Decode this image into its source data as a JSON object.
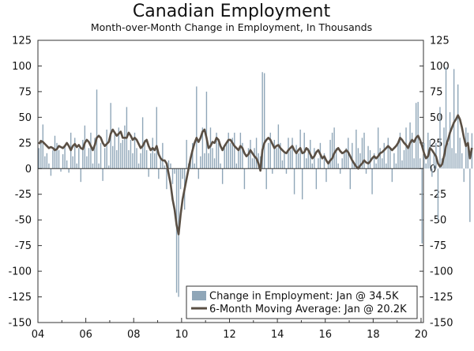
{
  "chart_data": {
    "type": "bar",
    "title": "Canadian Employment",
    "subtitle": "Month-over-Month Change in Employment, In Thousands",
    "xlabel": "",
    "ylabel": "",
    "ylim": [
      -150,
      125
    ],
    "yticks": [
      125,
      100,
      75,
      50,
      25,
      0,
      -25,
      -50,
      -75,
      -100,
      -125,
      -150
    ],
    "xlim": [
      2004.0,
      2020.1
    ],
    "xtick_labels": [
      "04",
      "06",
      "08",
      "10",
      "12",
      "14",
      "16",
      "18",
      "20"
    ],
    "xtick_years": [
      2004,
      2006,
      2008,
      2010,
      2012,
      2014,
      2016,
      2018,
      2020
    ],
    "x_start": "2004-01",
    "frequency": "monthly",
    "series": [
      {
        "name": "Change in Employment: Jan @ 34.5K",
        "type": "bar",
        "color": "#8fa6b8",
        "values": [
          20,
          25,
          43,
          12,
          15,
          5,
          -7,
          18,
          32,
          25,
          18,
          -3,
          14,
          22,
          8,
          -4,
          35,
          12,
          30,
          5,
          20,
          -13,
          28,
          42,
          12,
          20,
          35,
          5,
          30,
          77,
          5,
          25,
          -12,
          20,
          38,
          3,
          64,
          22,
          35,
          18,
          40,
          25,
          28,
          42,
          60,
          18,
          28,
          15,
          35,
          20,
          5,
          15,
          50,
          28,
          18,
          -8,
          15,
          30,
          15,
          60,
          -10,
          10,
          25,
          3,
          -20,
          8,
          5,
          -15,
          -5,
          -121,
          -125,
          -20,
          -10,
          -40,
          28,
          5,
          10,
          25,
          5,
          80,
          -10,
          12,
          40,
          15,
          75,
          15,
          40,
          20,
          10,
          35,
          25,
          5,
          -15,
          20,
          25,
          35,
          25,
          30,
          35,
          5,
          20,
          35,
          25,
          -20,
          0,
          20,
          28,
          10,
          20,
          30,
          15,
          12,
          94,
          93,
          -20,
          25,
          35,
          -5,
          28,
          20,
          43,
          25,
          8,
          15,
          -5,
          30,
          18,
          30,
          -25,
          23,
          15,
          38,
          -30,
          35,
          10,
          20,
          28,
          5,
          20,
          -20,
          10,
          25,
          0,
          15,
          -13,
          5,
          28,
          35,
          40,
          20,
          5,
          -5,
          10,
          15,
          20,
          30,
          -20,
          25,
          5,
          38,
          20,
          15,
          30,
          35,
          -5,
          22,
          18,
          -25,
          15,
          5,
          40,
          20,
          10,
          25,
          5,
          30,
          20,
          -13,
          15,
          5,
          25,
          35,
          8,
          18,
          40,
          20,
          45,
          35,
          10,
          64,
          65,
          10,
          -73,
          25,
          5,
          35,
          28,
          -8,
          15,
          25,
          -50,
          60,
          10,
          40,
          99,
          25,
          55,
          20,
          97,
          15,
          82,
          30,
          15,
          -13,
          40,
          35,
          -52,
          34.5
        ]
      },
      {
        "name": "6-Month Moving Average: Jan @ 20.2K",
        "type": "line",
        "color": "#5a4f44",
        "values": [
          24,
          27,
          26,
          24,
          22,
          20,
          21,
          20,
          18,
          19,
          22,
          21,
          20,
          22,
          25,
          22,
          18,
          22,
          24,
          21,
          23,
          20,
          19,
          25,
          28,
          26,
          22,
          18,
          23,
          30,
          32,
          30,
          25,
          22,
          24,
          26,
          34,
          38,
          35,
          32,
          34,
          36,
          30,
          30,
          30,
          35,
          32,
          28,
          30,
          28,
          24,
          20,
          22,
          26,
          28,
          22,
          18,
          20,
          18,
          22,
          14,
          10,
          8,
          8,
          5,
          -5,
          -15,
          -30,
          -40,
          -55,
          -64,
          -45,
          -30,
          -20,
          -10,
          0,
          10,
          18,
          25,
          30,
          26,
          30,
          36,
          38,
          30,
          20,
          22,
          26,
          25,
          30,
          28,
          22,
          18,
          22,
          25,
          28,
          28,
          25,
          22,
          20,
          18,
          22,
          20,
          15,
          12,
          14,
          18,
          15,
          12,
          10,
          5,
          -2,
          18,
          25,
          28,
          30,
          28,
          24,
          20,
          22,
          23,
          20,
          18,
          16,
          15,
          18,
          20,
          22,
          18,
          15,
          18,
          20,
          15,
          16,
          20,
          18,
          14,
          10,
          12,
          16,
          18,
          14,
          10,
          12,
          8,
          5,
          8,
          10,
          15,
          18,
          20,
          17,
          15,
          16,
          18,
          16,
          12,
          8,
          5,
          2,
          0,
          3,
          5,
          8,
          6,
          5,
          7,
          10,
          12,
          10,
          12,
          15,
          16,
          18,
          20,
          22,
          20,
          18,
          20,
          22,
          25,
          30,
          28,
          25,
          23,
          20,
          25,
          28,
          26,
          30,
          32,
          28,
          22,
          15,
          10,
          12,
          20,
          18,
          15,
          12,
          5,
          2,
          4,
          12,
          22,
          28,
          35,
          40,
          45,
          48,
          52,
          48,
          40,
          30,
          22,
          25,
          10,
          20.2
        ]
      }
    ],
    "legend_position": "bottom-right",
    "grid": false
  }
}
